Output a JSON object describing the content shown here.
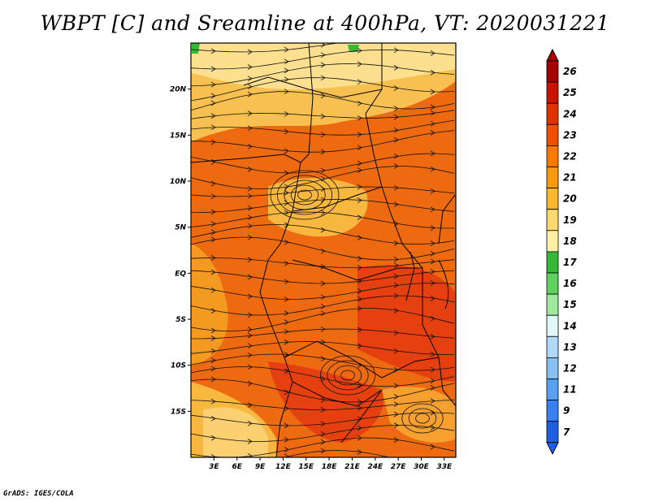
{
  "title": "WBPT [C] and Sreamline at 400hPa, VT: 2020031221",
  "credit": "GrADS: IGES/COLA",
  "map": {
    "lat_labels": [
      "20N",
      "15N",
      "10N",
      "5N",
      "EQ",
      "5S",
      "10S",
      "15S"
    ],
    "lat_values": [
      20,
      15,
      10,
      5,
      0,
      -5,
      -10,
      -15
    ],
    "lon_labels": [
      "3E",
      "6E",
      "9E",
      "12E",
      "15E",
      "18E",
      "21E",
      "24E",
      "27E",
      "30E",
      "33E"
    ],
    "lon_values": [
      3,
      6,
      9,
      12,
      15,
      18,
      21,
      24,
      27,
      30,
      33
    ],
    "lon_range": [
      0,
      34.5
    ],
    "lat_range": [
      -20,
      25
    ]
  },
  "colorbar": {
    "labels": [
      "26",
      "25",
      "24",
      "23",
      "22",
      "21",
      "20",
      "19",
      "18",
      "17",
      "16",
      "15",
      "14",
      "13",
      "12",
      "11",
      "9",
      "7"
    ],
    "colors": [
      "#a50000",
      "#c81400",
      "#e03200",
      "#ee5000",
      "#f57a00",
      "#f79a10",
      "#f8b830",
      "#fcd870",
      "#fcf0a8",
      "#38b838",
      "#60d060",
      "#a0e8a0",
      "#e0f8f8",
      "#b0d8f8",
      "#88c0f0",
      "#5aa0f0",
      "#3a80f0",
      "#2060e0"
    ],
    "top_arrow_color": "#a50000",
    "bottom_arrow_color": "#2060e0"
  }
}
